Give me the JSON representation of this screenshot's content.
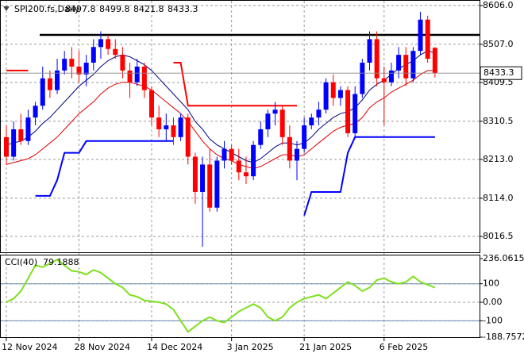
{
  "chart_data": [
    {
      "type": "candlestick",
      "title": "SPI200.fs,Daily",
      "categories": [
        "12 Nov 2024",
        null,
        null,
        null,
        null,
        null,
        null,
        null,
        null,
        null,
        "28 Nov 2024",
        null,
        null,
        null,
        null,
        null,
        null,
        null,
        null,
        null,
        "14 Dec 2024",
        null,
        null,
        null,
        null,
        null,
        null,
        null,
        null,
        null,
        null,
        "3 Jan 2025",
        null,
        null,
        null,
        null,
        null,
        null,
        null,
        null,
        null,
        "21 Jan 2025",
        null,
        null,
        null,
        null,
        null,
        null,
        null,
        null,
        null,
        null,
        "6 Feb 2025",
        null,
        null,
        null,
        null,
        null,
        null,
        null
      ],
      "open": [
        8270,
        8220,
        8290,
        8260,
        8320,
        8350,
        8420,
        8390,
        8440,
        8470,
        8450,
        8430,
        8460,
        8500,
        8520,
        8495,
        8480,
        8440,
        8410,
        8450,
        8390,
        8320,
        8290,
        8300,
        8270,
        8320,
        8220,
        8130,
        8200,
        8090,
        8210,
        8240,
        8210,
        8180,
        8170,
        8250,
        8290,
        8330,
        8340,
        8270,
        8210,
        8240,
        8300,
        8320,
        8340,
        8410,
        8370,
        8390,
        8280,
        8380,
        8460,
        8520,
        8420,
        8410,
        8440,
        8480,
        8420,
        8490,
        8570,
        8497.8
      ],
      "high": [
        8300,
        8310,
        8330,
        8340,
        8360,
        8450,
        8440,
        8470,
        8490,
        8500,
        8490,
        8480,
        8520,
        8540,
        8530,
        8520,
        8500,
        8460,
        8470,
        8460,
        8400,
        8350,
        8330,
        8320,
        8330,
        8330,
        8230,
        8220,
        8240,
        8220,
        8260,
        8250,
        8240,
        8220,
        8260,
        8310,
        8340,
        8360,
        8350,
        8300,
        8260,
        8320,
        8330,
        8360,
        8420,
        8430,
        8400,
        8400,
        8400,
        8470,
        8540,
        8540,
        8450,
        8460,
        8500,
        8500,
        8500,
        8590,
        8580,
        8499.8
      ],
      "low": [
        8200,
        8210,
        8250,
        8250,
        8300,
        8340,
        8370,
        8380,
        8430,
        8420,
        8410,
        8400,
        8440,
        8470,
        8480,
        8470,
        8420,
        8370,
        8400,
        8370,
        8300,
        8270,
        8260,
        8250,
        8260,
        8200,
        8100,
        7990,
        8080,
        8080,
        8190,
        8200,
        8160,
        8150,
        8160,
        8240,
        8270,
        8300,
        8250,
        8190,
        8160,
        8230,
        8290,
        8300,
        8330,
        8350,
        8350,
        8270,
        8270,
        8370,
        8440,
        8400,
        8300,
        8400,
        8420,
        8400,
        8410,
        8480,
        8460,
        8421.8
      ],
      "close": [
        8220,
        8290,
        8260,
        8320,
        8350,
        8420,
        8390,
        8440,
        8470,
        8450,
        8430,
        8460,
        8500,
        8520,
        8495,
        8480,
        8440,
        8410,
        8450,
        8390,
        8320,
        8290,
        8300,
        8270,
        8320,
        8220,
        8130,
        8200,
        8090,
        8210,
        8240,
        8210,
        8180,
        8170,
        8250,
        8290,
        8330,
        8340,
        8270,
        8210,
        8240,
        8300,
        8320,
        8340,
        8410,
        8370,
        8390,
        8280,
        8380,
        8460,
        8520,
        8420,
        8410,
        8440,
        8480,
        8420,
        8490,
        8570,
        8470,
        8433.3
      ],
      "up_color": "#0000ff",
      "down_color": "#ff0000",
      "overlays": [
        {
          "color": "#000080",
          "width": 1,
          "values": [
            8250,
            8255,
            8260,
            8270,
            8285,
            8305,
            8320,
            8340,
            8360,
            8380,
            8400,
            8415,
            8430,
            8450,
            8465,
            8475,
            8480,
            8475,
            8465,
            8455,
            8440,
            8420,
            8400,
            8380,
            8360,
            8340,
            8310,
            8290,
            8265,
            8250,
            8240,
            8230,
            8220,
            8210,
            8205,
            8215,
            8230,
            8245,
            8255,
            8255,
            8250,
            8255,
            8270,
            8290,
            8305,
            8320,
            8330,
            8335,
            8345,
            8365,
            8390,
            8405,
            8415,
            8430,
            8445,
            8455,
            8465,
            8480,
            8490,
            8485
          ]
        },
        {
          "color": "#e00000",
          "width": 1,
          "values": [
            8200,
            8205,
            8210,
            8215,
            8225,
            8240,
            8255,
            8270,
            8290,
            8310,
            8330,
            8345,
            8360,
            8380,
            8395,
            8405,
            8410,
            8410,
            8405,
            8400,
            8390,
            8375,
            8360,
            8345,
            8330,
            8310,
            8285,
            8260,
            8240,
            8225,
            8215,
            8210,
            8200,
            8195,
            8190,
            8195,
            8205,
            8215,
            8225,
            8225,
            8220,
            8225,
            8240,
            8255,
            8270,
            8285,
            8295,
            8300,
            8305,
            8320,
            8345,
            8360,
            8370,
            8385,
            8395,
            8405,
            8415,
            8430,
            8440,
            8440
          ]
        },
        {
          "color": "#ff0000",
          "width": 2,
          "values": [
            8440,
            8440,
            8440,
            8440,
            null,
            null,
            null,
            null,
            null,
            null,
            null,
            null,
            null,
            null,
            null,
            null,
            null,
            null,
            null,
            null,
            null,
            null,
            null,
            8460,
            8460,
            8350,
            8350,
            8350,
            8350,
            8350,
            8350,
            8350,
            8350,
            8350,
            8350,
            8350,
            8350,
            8350,
            8350,
            8350,
            8350,
            null,
            null,
            null,
            null,
            null,
            null,
            null,
            null,
            null,
            null,
            null,
            null,
            null,
            null,
            null,
            null,
            null,
            null,
            null
          ]
        },
        {
          "color": "#0000ff",
          "width": 2,
          "values": [
            null,
            null,
            null,
            null,
            8120,
            8120,
            8120,
            8160,
            8230,
            8230,
            8230,
            8260,
            8260,
            8260,
            8260,
            8260,
            8260,
            8260,
            8260,
            8260,
            8260,
            8260,
            8260,
            8260,
            null,
            null,
            null,
            null,
            null,
            null,
            null,
            null,
            null,
            null,
            null,
            null,
            null,
            null,
            null,
            null,
            null,
            8070,
            8130,
            8130,
            8130,
            8130,
            8130,
            8230,
            8270,
            8270,
            8270,
            8270,
            8270,
            8270,
            8270,
            8270,
            8270,
            8270,
            8270,
            8270
          ]
        }
      ],
      "resistance": 8531,
      "ylim": [
        7976,
        8618
      ],
      "yticks": [
        8016.5,
        {
          "value": 8114,
          "label": "8114.0"
        },
        {
          "value": 8213,
          "label": "8213.0"
        },
        8310.5,
        8409.5,
        {
          "value": 8507,
          "label": "8507.0"
        },
        {
          "value": 8606,
          "label": "8606.0"
        }
      ],
      "grid": true
    },
    {
      "type": "line",
      "title": "CCI(40)",
      "color": "#7ee01e",
      "values": [
        0,
        20,
        60,
        130,
        200,
        190,
        210,
        230,
        200,
        170,
        165,
        150,
        175,
        160,
        130,
        100,
        80,
        40,
        30,
        10,
        5,
        0,
        -10,
        -40,
        -100,
        -160,
        -130,
        -100,
        -80,
        -100,
        -110,
        -80,
        -50,
        -30,
        -10,
        -30,
        -80,
        -100,
        -80,
        -30,
        0,
        20,
        30,
        40,
        20,
        50,
        80,
        110,
        90,
        60,
        80,
        120,
        130,
        110,
        100,
        110,
        140,
        110,
        95,
        79.1888
      ],
      "levels": [
        100,
        -100
      ],
      "level_color": "#6a8caf",
      "ylim": [
        -188.7572,
        236.0615
      ],
      "yticks": [
        236.0615,
        100,
        {
          "value": 0,
          "label": "0.00"
        },
        -100,
        -188.7572
      ],
      "grid": true
    }
  ]
}
